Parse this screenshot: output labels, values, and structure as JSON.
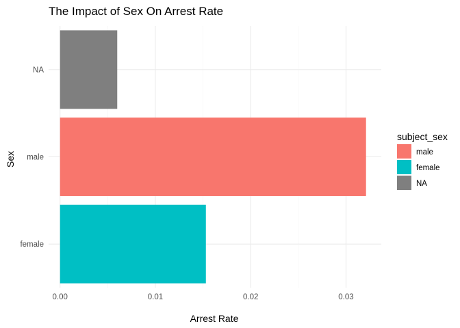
{
  "chart_data": {
    "type": "bar",
    "orientation": "horizontal",
    "title": "The Impact of Sex On Arrest Rate",
    "xlabel": "Arrest Rate",
    "ylabel": "Sex",
    "categories": [
      "female",
      "male",
      "NA"
    ],
    "values": [
      0.0153,
      0.0321,
      0.006
    ],
    "bar_colors": [
      "#00BFC4",
      "#F8766D",
      "#7F7F7F"
    ],
    "xlim": [
      -0.0012,
      0.0337
    ],
    "xticks": [
      0.0,
      0.01,
      0.02,
      0.03
    ],
    "xtick_labels": [
      "0.00",
      "0.01",
      "0.02",
      "0.03"
    ],
    "grid": true,
    "legend": {
      "title": "subject_sex",
      "placement": "right",
      "items": [
        {
          "label": "male",
          "color": "#F8766D"
        },
        {
          "label": "female",
          "color": "#00BFC4"
        },
        {
          "label": "NA",
          "color": "#7F7F7F"
        }
      ]
    }
  }
}
